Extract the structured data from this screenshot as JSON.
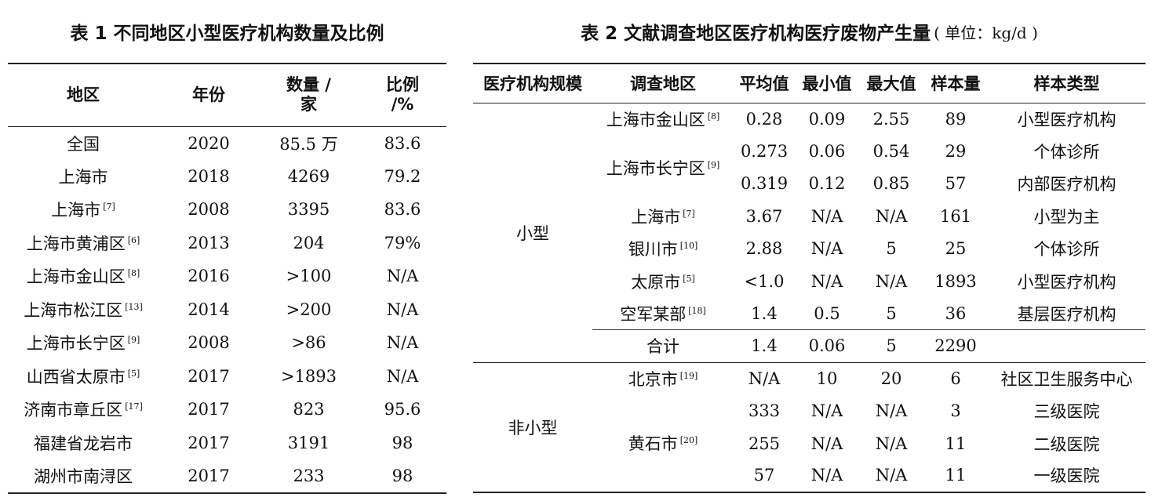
{
  "table1": {
    "caption": "表 1  不同地区小型医疗机构数量及比例",
    "headers": {
      "region": "地区",
      "year": "年份",
      "count": "数量 /家",
      "ratio": "比例 /%"
    },
    "rows": [
      {
        "region": "全国",
        "ref": "",
        "year": "2020",
        "count": "85.5 万",
        "ratio": "83.6"
      },
      {
        "region": "上海市",
        "ref": "",
        "year": "2018",
        "count": "4269",
        "ratio": "79.2"
      },
      {
        "region": "上海市",
        "ref": "[7]",
        "year": "2008",
        "count": "3395",
        "ratio": "83.6"
      },
      {
        "region": "上海市黄浦区",
        "ref": "[6]",
        "year": "2013",
        "count": "204",
        "ratio": "79%"
      },
      {
        "region": "上海市金山区",
        "ref": "[8]",
        "year": "2016",
        "count": ">100",
        "ratio": "N/A"
      },
      {
        "region": "上海市松江区",
        "ref": "[13]",
        "year": "2014",
        "count": ">200",
        "ratio": "N/A"
      },
      {
        "region": "上海市长宁区",
        "ref": "[9]",
        "year": "2008",
        "count": ">86",
        "ratio": "N/A"
      },
      {
        "region": "山西省太原市",
        "ref": "[5]",
        "year": "2017",
        "count": ">1893",
        "ratio": "N/A"
      },
      {
        "region": "济南市章丘区",
        "ref": "[17]",
        "year": "2017",
        "count": "823",
        "ratio": "95.6"
      },
      {
        "region": "福建省龙岩市",
        "ref": "",
        "year": "2017",
        "count": "3191",
        "ratio": "98"
      },
      {
        "region": "湖州市南浔区",
        "ref": "",
        "year": "2017",
        "count": "233",
        "ratio": "98"
      }
    ]
  },
  "table2": {
    "caption": "表 2  文献调查地区医疗机构医疗废物产生量",
    "caption_unit": "( 单位：kg/d )",
    "headers": {
      "scale": "医疗机构规模",
      "region": "调查地区",
      "avg": "平均值",
      "min": "最小值",
      "max": "最大值",
      "n": "样本量",
      "type": "样本类型"
    },
    "groups": {
      "small": "小型",
      "nonsmall": "非小型"
    },
    "rows": {
      "jinshan": {
        "region": "上海市金山区",
        "ref": "[8]",
        "avg": "0.28",
        "min": "0.09",
        "max": "2.55",
        "n": "89",
        "type": "小型医疗机构"
      },
      "changning": {
        "region": "上海市长宁区",
        "ref": "[9]"
      },
      "changning_a": {
        "avg": "0.273",
        "min": "0.06",
        "max": "0.54",
        "n": "29",
        "type": "个体诊所"
      },
      "changning_b": {
        "avg": "0.319",
        "min": "0.12",
        "max": "0.85",
        "n": "57",
        "type": "内部医疗机构"
      },
      "shanghai": {
        "region": "上海市",
        "ref": "[7]",
        "avg": "3.67",
        "min": "N/A",
        "max": "N/A",
        "n": "161",
        "type": "小型为主"
      },
      "yinchuan": {
        "region": "银川市",
        "ref": "[10]",
        "avg": "2.88",
        "min": "N/A",
        "max": "5",
        "n": "25",
        "type": "个体诊所"
      },
      "taiyuan": {
        "region": "太原市",
        "ref": "[5]",
        "avg": "<1.0",
        "min": "N/A",
        "max": "N/A",
        "n": "1893",
        "type": "小型医疗机构"
      },
      "airforce": {
        "region": "空军某部",
        "ref": "[18]",
        "avg": "1.4",
        "min": "0.5",
        "max": "5",
        "n": "36",
        "type": "基层医疗机构"
      },
      "total": {
        "region": "合计",
        "avg": "1.4",
        "min": "0.06",
        "max": "5",
        "n": "2290",
        "type": ""
      },
      "beijing": {
        "region": "北京市",
        "ref": "[19]",
        "avg": "N/A",
        "min": "10",
        "max": "20",
        "n": "6",
        "type": "社区卫生服务中心"
      },
      "huangshi": {
        "region": "黄石市",
        "ref": "[20]"
      },
      "huangshi_a": {
        "avg": "333",
        "min": "N/A",
        "max": "N/A",
        "n": "3",
        "type": "三级医院"
      },
      "huangshi_b": {
        "avg": "255",
        "min": "N/A",
        "max": "N/A",
        "n": "11",
        "type": "二级医院"
      },
      "huangshi_c": {
        "avg": "57",
        "min": "N/A",
        "max": "N/A",
        "n": "11",
        "type": "一级医院"
      }
    }
  }
}
